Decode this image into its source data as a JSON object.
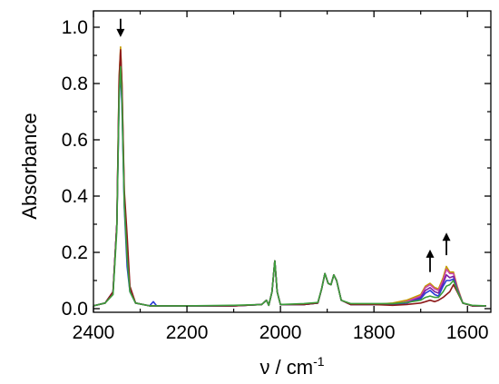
{
  "chart_data": {
    "type": "line",
    "title": "",
    "xlabel": "ν / cm",
    "xlabel_superscript": "-1",
    "ylabel": "Absorbance",
    "xlim": [
      2400,
      1550
    ],
    "ylim": [
      0,
      1.0
    ],
    "x_reversed": true,
    "x_ticks": [
      2400,
      2200,
      2000,
      1800,
      1600
    ],
    "x_tick_labels": [
      "2400",
      "2200",
      "2000",
      "1800",
      "1600"
    ],
    "y_ticks": [
      0,
      0.2,
      0.4,
      0.6,
      0.8,
      1.0
    ],
    "y_tick_labels": [
      "0.0",
      "0.2",
      "0.4",
      "0.6",
      "0.8",
      "1.0"
    ],
    "grid": false,
    "legend": "none",
    "annotations": [
      {
        "type": "arrow",
        "direction": "down",
        "x": 2342,
        "y_from": 1.03,
        "y_to": 0.965
      },
      {
        "type": "arrow",
        "direction": "up",
        "x": 1680,
        "y_from": 0.13,
        "y_to": 0.21
      },
      {
        "type": "arrow",
        "direction": "up",
        "x": 1645,
        "y_from": 0.19,
        "y_to": 0.27
      }
    ],
    "series": [
      {
        "color": "#c49a00",
        "points": [
          [
            2400,
            0.01
          ],
          [
            2375,
            0.02
          ],
          [
            2358,
            0.06
          ],
          [
            2350,
            0.3
          ],
          [
            2345,
            0.82
          ],
          [
            2342,
            0.93
          ],
          [
            2339,
            0.8
          ],
          [
            2334,
            0.4
          ],
          [
            2328,
            0.22
          ],
          [
            2322,
            0.07
          ],
          [
            2310,
            0.02
          ],
          [
            2280,
            0.01
          ],
          [
            2200,
            0.01
          ],
          [
            2100,
            0.01
          ],
          [
            2040,
            0.015
          ],
          [
            2030,
            0.03
          ],
          [
            2025,
            0.012
          ],
          [
            2018,
            0.06
          ],
          [
            2012,
            0.17
          ],
          [
            2007,
            0.06
          ],
          [
            2000,
            0.015
          ],
          [
            1950,
            0.015
          ],
          [
            1920,
            0.02
          ],
          [
            1912,
            0.07
          ],
          [
            1905,
            0.125
          ],
          [
            1898,
            0.09
          ],
          [
            1892,
            0.085
          ],
          [
            1886,
            0.12
          ],
          [
            1880,
            0.1
          ],
          [
            1870,
            0.03
          ],
          [
            1850,
            0.015
          ],
          [
            1800,
            0.015
          ],
          [
            1760,
            0.02
          ],
          [
            1730,
            0.03
          ],
          [
            1700,
            0.05
          ],
          [
            1690,
            0.08
          ],
          [
            1680,
            0.09
          ],
          [
            1670,
            0.075
          ],
          [
            1662,
            0.07
          ],
          [
            1652,
            0.11
          ],
          [
            1645,
            0.15
          ],
          [
            1638,
            0.13
          ],
          [
            1630,
            0.13
          ],
          [
            1622,
            0.08
          ],
          [
            1610,
            0.02
          ],
          [
            1590,
            0.01
          ],
          [
            1560,
            0.01
          ]
        ]
      },
      {
        "color": "#cc44aa",
        "points": [
          [
            2400,
            0.01
          ],
          [
            2375,
            0.02
          ],
          [
            2358,
            0.06
          ],
          [
            2350,
            0.3
          ],
          [
            2345,
            0.8
          ],
          [
            2342,
            0.91
          ],
          [
            2339,
            0.78
          ],
          [
            2334,
            0.39
          ],
          [
            2328,
            0.21
          ],
          [
            2322,
            0.07
          ],
          [
            2310,
            0.02
          ],
          [
            2280,
            0.01
          ],
          [
            2200,
            0.01
          ],
          [
            2100,
            0.01
          ],
          [
            2040,
            0.015
          ],
          [
            2030,
            0.03
          ],
          [
            2025,
            0.012
          ],
          [
            2018,
            0.06
          ],
          [
            2012,
            0.17
          ],
          [
            2007,
            0.06
          ],
          [
            2000,
            0.015
          ],
          [
            1950,
            0.015
          ],
          [
            1920,
            0.02
          ],
          [
            1912,
            0.07
          ],
          [
            1905,
            0.125
          ],
          [
            1898,
            0.09
          ],
          [
            1892,
            0.085
          ],
          [
            1886,
            0.12
          ],
          [
            1880,
            0.1
          ],
          [
            1870,
            0.03
          ],
          [
            1850,
            0.015
          ],
          [
            1800,
            0.015
          ],
          [
            1760,
            0.015
          ],
          [
            1730,
            0.025
          ],
          [
            1700,
            0.045
          ],
          [
            1690,
            0.075
          ],
          [
            1680,
            0.085
          ],
          [
            1670,
            0.07
          ],
          [
            1662,
            0.065
          ],
          [
            1652,
            0.1
          ],
          [
            1645,
            0.14
          ],
          [
            1638,
            0.125
          ],
          [
            1630,
            0.125
          ],
          [
            1622,
            0.075
          ],
          [
            1610,
            0.02
          ],
          [
            1590,
            0.01
          ],
          [
            1560,
            0.01
          ]
        ]
      },
      {
        "color": "#7a1fa2",
        "points": [
          [
            2400,
            0.01
          ],
          [
            2375,
            0.02
          ],
          [
            2358,
            0.06
          ],
          [
            2350,
            0.3
          ],
          [
            2345,
            0.78
          ],
          [
            2342,
            0.89
          ],
          [
            2339,
            0.76
          ],
          [
            2334,
            0.38
          ],
          [
            2328,
            0.2
          ],
          [
            2322,
            0.07
          ],
          [
            2310,
            0.02
          ],
          [
            2280,
            0.01
          ],
          [
            2200,
            0.01
          ],
          [
            2100,
            0.01
          ],
          [
            2040,
            0.015
          ],
          [
            2030,
            0.03
          ],
          [
            2025,
            0.012
          ],
          [
            2018,
            0.06
          ],
          [
            2012,
            0.17
          ],
          [
            2007,
            0.06
          ],
          [
            2000,
            0.015
          ],
          [
            1950,
            0.015
          ],
          [
            1920,
            0.02
          ],
          [
            1912,
            0.07
          ],
          [
            1905,
            0.125
          ],
          [
            1898,
            0.09
          ],
          [
            1892,
            0.085
          ],
          [
            1886,
            0.12
          ],
          [
            1880,
            0.1
          ],
          [
            1870,
            0.03
          ],
          [
            1850,
            0.015
          ],
          [
            1800,
            0.015
          ],
          [
            1760,
            0.015
          ],
          [
            1730,
            0.02
          ],
          [
            1700,
            0.04
          ],
          [
            1690,
            0.065
          ],
          [
            1680,
            0.075
          ],
          [
            1670,
            0.06
          ],
          [
            1662,
            0.055
          ],
          [
            1652,
            0.09
          ],
          [
            1645,
            0.12
          ],
          [
            1638,
            0.11
          ],
          [
            1630,
            0.115
          ],
          [
            1622,
            0.07
          ],
          [
            1610,
            0.02
          ],
          [
            1590,
            0.01
          ],
          [
            1560,
            0.01
          ]
        ]
      },
      {
        "color": "#2a3bd6",
        "points": [
          [
            2400,
            0.01
          ],
          [
            2375,
            0.02
          ],
          [
            2358,
            0.06
          ],
          [
            2350,
            0.3
          ],
          [
            2345,
            0.74
          ],
          [
            2342,
            0.85
          ],
          [
            2339,
            0.72
          ],
          [
            2334,
            0.36
          ],
          [
            2328,
            0.15
          ],
          [
            2322,
            0.06
          ],
          [
            2310,
            0.02
          ],
          [
            2280,
            0.01
          ],
          [
            2272,
            0.025
          ],
          [
            2265,
            0.01
          ],
          [
            2200,
            0.01
          ],
          [
            2100,
            0.01
          ],
          [
            2040,
            0.015
          ],
          [
            2030,
            0.03
          ],
          [
            2025,
            0.012
          ],
          [
            2018,
            0.06
          ],
          [
            2012,
            0.17
          ],
          [
            2007,
            0.06
          ],
          [
            2000,
            0.015
          ],
          [
            1950,
            0.015
          ],
          [
            1920,
            0.02
          ],
          [
            1912,
            0.07
          ],
          [
            1905,
            0.125
          ],
          [
            1898,
            0.09
          ],
          [
            1892,
            0.085
          ],
          [
            1886,
            0.12
          ],
          [
            1880,
            0.1
          ],
          [
            1870,
            0.03
          ],
          [
            1850,
            0.015
          ],
          [
            1800,
            0.015
          ],
          [
            1760,
            0.015
          ],
          [
            1730,
            0.02
          ],
          [
            1700,
            0.035
          ],
          [
            1690,
            0.055
          ],
          [
            1680,
            0.065
          ],
          [
            1670,
            0.05
          ],
          [
            1662,
            0.045
          ],
          [
            1652,
            0.08
          ],
          [
            1645,
            0.1
          ],
          [
            1638,
            0.1
          ],
          [
            1630,
            0.105
          ],
          [
            1622,
            0.065
          ],
          [
            1610,
            0.02
          ],
          [
            1590,
            0.01
          ],
          [
            1560,
            0.01
          ]
        ]
      },
      {
        "color": "#8e1b1b",
        "points": [
          [
            2400,
            0.01
          ],
          [
            2375,
            0.02
          ],
          [
            2358,
            0.06
          ],
          [
            2350,
            0.3
          ],
          [
            2345,
            0.82
          ],
          [
            2342,
            0.92
          ],
          [
            2339,
            0.8
          ],
          [
            2334,
            0.42
          ],
          [
            2328,
            0.26
          ],
          [
            2322,
            0.08
          ],
          [
            2310,
            0.02
          ],
          [
            2280,
            0.01
          ],
          [
            2200,
            0.01
          ],
          [
            2100,
            0.01
          ],
          [
            2040,
            0.015
          ],
          [
            2030,
            0.03
          ],
          [
            2025,
            0.012
          ],
          [
            2018,
            0.06
          ],
          [
            2012,
            0.17
          ],
          [
            2007,
            0.06
          ],
          [
            2000,
            0.015
          ],
          [
            1950,
            0.015
          ],
          [
            1920,
            0.02
          ],
          [
            1912,
            0.07
          ],
          [
            1905,
            0.125
          ],
          [
            1898,
            0.09
          ],
          [
            1892,
            0.085
          ],
          [
            1886,
            0.12
          ],
          [
            1880,
            0.1
          ],
          [
            1870,
            0.03
          ],
          [
            1850,
            0.015
          ],
          [
            1800,
            0.015
          ],
          [
            1760,
            0.012
          ],
          [
            1730,
            0.015
          ],
          [
            1700,
            0.02
          ],
          [
            1690,
            0.025
          ],
          [
            1680,
            0.03
          ],
          [
            1670,
            0.025
          ],
          [
            1662,
            0.03
          ],
          [
            1652,
            0.04
          ],
          [
            1645,
            0.05
          ],
          [
            1638,
            0.06
          ],
          [
            1630,
            0.085
          ],
          [
            1622,
            0.06
          ],
          [
            1610,
            0.02
          ],
          [
            1590,
            0.01
          ],
          [
            1560,
            0.01
          ]
        ]
      },
      {
        "color": "#3b9e3b",
        "points": [
          [
            2400,
            0.01
          ],
          [
            2375,
            0.02
          ],
          [
            2358,
            0.05
          ],
          [
            2350,
            0.28
          ],
          [
            2345,
            0.76
          ],
          [
            2342,
            0.86
          ],
          [
            2339,
            0.74
          ],
          [
            2334,
            0.37
          ],
          [
            2328,
            0.18
          ],
          [
            2322,
            0.06
          ],
          [
            2310,
            0.02
          ],
          [
            2280,
            0.01
          ],
          [
            2200,
            0.01
          ],
          [
            2100,
            0.012
          ],
          [
            2040,
            0.015
          ],
          [
            2030,
            0.03
          ],
          [
            2025,
            0.012
          ],
          [
            2018,
            0.06
          ],
          [
            2012,
            0.17
          ],
          [
            2007,
            0.06
          ],
          [
            2000,
            0.015
          ],
          [
            1950,
            0.018
          ],
          [
            1920,
            0.022
          ],
          [
            1912,
            0.07
          ],
          [
            1905,
            0.125
          ],
          [
            1898,
            0.09
          ],
          [
            1892,
            0.085
          ],
          [
            1886,
            0.12
          ],
          [
            1880,
            0.1
          ],
          [
            1870,
            0.03
          ],
          [
            1850,
            0.018
          ],
          [
            1800,
            0.018
          ],
          [
            1760,
            0.018
          ],
          [
            1730,
            0.022
          ],
          [
            1700,
            0.03
          ],
          [
            1690,
            0.04
          ],
          [
            1680,
            0.045
          ],
          [
            1670,
            0.04
          ],
          [
            1662,
            0.04
          ],
          [
            1652,
            0.06
          ],
          [
            1645,
            0.08
          ],
          [
            1638,
            0.085
          ],
          [
            1630,
            0.1
          ],
          [
            1622,
            0.065
          ],
          [
            1610,
            0.02
          ],
          [
            1590,
            0.012
          ],
          [
            1560,
            0.01
          ]
        ]
      }
    ]
  }
}
